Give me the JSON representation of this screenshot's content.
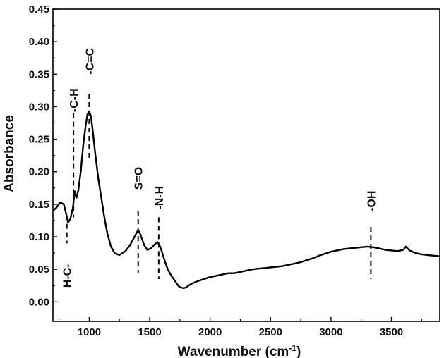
{
  "chart_data": {
    "type": "line",
    "title": "",
    "xlabel": "Wavenumber (cm",
    "xlabel_superscript": "-1",
    "xlabel_suffix": ")",
    "ylabel": "Absorbance",
    "xlim": [
      700,
      3900
    ],
    "ylim": [
      -0.03,
      0.45
    ],
    "grid": false,
    "legend": "none",
    "x_ticks": [
      1000,
      1500,
      2000,
      2500,
      3000,
      3500
    ],
    "x_tick_labels": [
      "1000",
      "1500",
      "2000",
      "2500",
      "3000",
      "3500"
    ],
    "y_ticks": [
      0.0,
      0.05,
      0.1,
      0.15,
      0.2,
      0.25,
      0.3,
      0.35,
      0.4,
      0.45
    ],
    "y_tick_labels": [
      "0.00",
      "0.05",
      "0.10",
      "0.15",
      "0.20",
      "0.25",
      "0.30",
      "0.35",
      "0.40",
      "0.45"
    ],
    "series": [
      {
        "color": "#000000",
        "x": [
          700,
          730,
          760,
          790,
          810,
          825,
          845,
          865,
          880,
          895,
          910,
          930,
          950,
          970,
          985,
          1000,
          1015,
          1030,
          1050,
          1075,
          1100,
          1125,
          1150,
          1180,
          1210,
          1250,
          1300,
          1340,
          1375,
          1400,
          1415,
          1430,
          1455,
          1480,
          1510,
          1540,
          1565,
          1580,
          1600,
          1625,
          1650,
          1680,
          1710,
          1740,
          1760,
          1780,
          1800,
          1830,
          1860,
          1900,
          1950,
          2000,
          2050,
          2100,
          2150,
          2200,
          2250,
          2300,
          2350,
          2400,
          2450,
          2500,
          2550,
          2600,
          2650,
          2700,
          2750,
          2800,
          2850,
          2900,
          2950,
          3000,
          3050,
          3100,
          3150,
          3200,
          3250,
          3300,
          3350,
          3400,
          3450,
          3500,
          3550,
          3600,
          3620,
          3650,
          3700,
          3750,
          3800,
          3850,
          3900
        ],
        "y": [
          0.14,
          0.145,
          0.153,
          0.15,
          0.135,
          0.122,
          0.128,
          0.145,
          0.17,
          0.16,
          0.172,
          0.2,
          0.24,
          0.27,
          0.288,
          0.293,
          0.285,
          0.262,
          0.228,
          0.19,
          0.16,
          0.13,
          0.105,
          0.085,
          0.075,
          0.072,
          0.078,
          0.088,
          0.1,
          0.109,
          0.108,
          0.1,
          0.087,
          0.08,
          0.082,
          0.088,
          0.092,
          0.088,
          0.078,
          0.063,
          0.05,
          0.04,
          0.032,
          0.024,
          0.022,
          0.021,
          0.022,
          0.026,
          0.029,
          0.032,
          0.035,
          0.038,
          0.04,
          0.042,
          0.044,
          0.044,
          0.046,
          0.048,
          0.05,
          0.051,
          0.052,
          0.053,
          0.054,
          0.055,
          0.057,
          0.059,
          0.061,
          0.064,
          0.067,
          0.071,
          0.074,
          0.077,
          0.079,
          0.081,
          0.082,
          0.083,
          0.084,
          0.085,
          0.084,
          0.082,
          0.08,
          0.079,
          0.078,
          0.08,
          0.085,
          0.079,
          0.075,
          0.073,
          0.072,
          0.071,
          0.07
        ]
      }
    ],
    "annotations": [
      {
        "label": "H-C-",
        "x": 815,
        "y_top": 0.12,
        "y_bottom": 0.09,
        "label_y": 0.04
      },
      {
        "label": "-C-H",
        "x": 870,
        "y_top": 0.29,
        "y_bottom": 0.13,
        "label_y": 0.31
      },
      {
        "label": "-C=C",
        "x": 1000,
        "y_top": 0.32,
        "y_bottom": 0.22,
        "label_y": 0.37
      },
      {
        "label": "S=O",
        "x": 1405,
        "y_top": 0.14,
        "y_bottom": 0.045,
        "label_y": 0.19
      },
      {
        "label": "-N-H",
        "x": 1575,
        "y_top": 0.13,
        "y_bottom": 0.035,
        "label_y": 0.16
      },
      {
        "label": "-OH",
        "x": 3330,
        "y_top": 0.115,
        "y_bottom": 0.035,
        "label_y": 0.155
      }
    ]
  }
}
